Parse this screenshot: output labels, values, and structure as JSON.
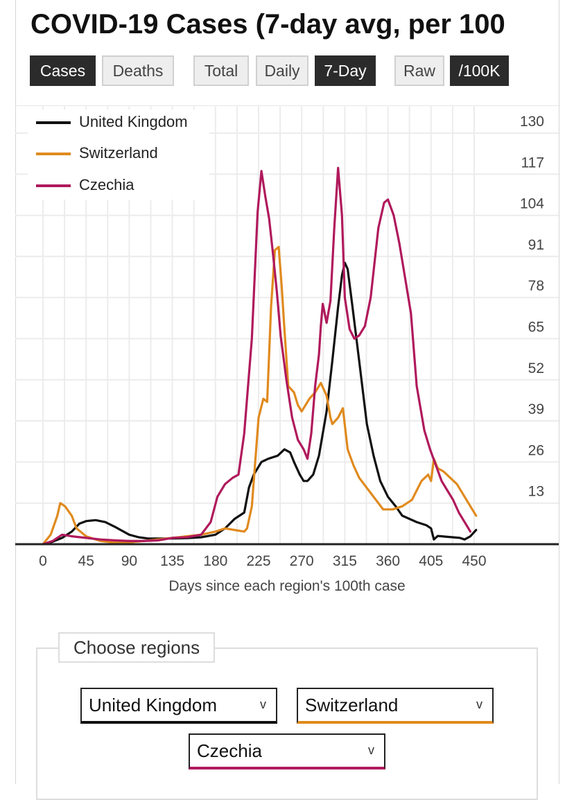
{
  "title": "COVID-19 Cases (7-day avg, per 100",
  "toggles": {
    "metric": [
      {
        "label": "Cases",
        "active": true
      },
      {
        "label": "Deaths",
        "active": false
      }
    ],
    "mode": [
      {
        "label": "Total",
        "active": false
      },
      {
        "label": "Daily",
        "active": false
      },
      {
        "label": "7-Day",
        "active": true
      }
    ],
    "scale": [
      {
        "label": "Raw",
        "active": false
      },
      {
        "label": "/100K",
        "active": true
      }
    ]
  },
  "chart_data": {
    "type": "line",
    "xlabel": "Days since each region's 100th case",
    "ylabel": "",
    "xlim": [
      0,
      450
    ],
    "ylim": [
      0,
      130
    ],
    "x_ticks": [
      0,
      45,
      90,
      135,
      180,
      225,
      270,
      315,
      360,
      405,
      450
    ],
    "y_ticks": [
      13,
      26,
      39,
      52,
      65,
      78,
      91,
      104,
      117,
      130
    ],
    "grid": true,
    "legend_position": "top-left",
    "series": [
      {
        "name": "United Kingdom",
        "color": "#111111",
        "points": [
          [
            0,
            0
          ],
          [
            10,
            0.8
          ],
          [
            20,
            2
          ],
          [
            30,
            4
          ],
          [
            38,
            6.5
          ],
          [
            45,
            7.3
          ],
          [
            55,
            7.6
          ],
          [
            65,
            7
          ],
          [
            75,
            5.5
          ],
          [
            90,
            3
          ],
          [
            100,
            2.2
          ],
          [
            110,
            1.8
          ],
          [
            120,
            1.8
          ],
          [
            135,
            1.8
          ],
          [
            150,
            1.9
          ],
          [
            165,
            2.2
          ],
          [
            180,
            3
          ],
          [
            190,
            5
          ],
          [
            200,
            8
          ],
          [
            210,
            10
          ],
          [
            215,
            18
          ],
          [
            220,
            22
          ],
          [
            228,
            26
          ],
          [
            235,
            27
          ],
          [
            245,
            28
          ],
          [
            252,
            30
          ],
          [
            258,
            29
          ],
          [
            262,
            26
          ],
          [
            268,
            22
          ],
          [
            272,
            20
          ],
          [
            276,
            20
          ],
          [
            282,
            22
          ],
          [
            288,
            28
          ],
          [
            296,
            42
          ],
          [
            302,
            58
          ],
          [
            308,
            75
          ],
          [
            312,
            85
          ],
          [
            315,
            89
          ],
          [
            318,
            87
          ],
          [
            323,
            75
          ],
          [
            330,
            58
          ],
          [
            338,
            38
          ],
          [
            345,
            28
          ],
          [
            352,
            20
          ],
          [
            360,
            15
          ],
          [
            368,
            12
          ],
          [
            375,
            9
          ],
          [
            390,
            7
          ],
          [
            400,
            6
          ],
          [
            405,
            5
          ],
          [
            408,
            1.5
          ],
          [
            412,
            2.6
          ],
          [
            420,
            2.4
          ],
          [
            435,
            2
          ],
          [
            440,
            1.5
          ],
          [
            446,
            2.5
          ],
          [
            452,
            4.5
          ]
        ]
      },
      {
        "name": "Switzerland",
        "color": "#e08a1e",
        "points": [
          [
            0,
            0
          ],
          [
            8,
            3
          ],
          [
            15,
            9
          ],
          [
            18,
            13
          ],
          [
            23,
            12
          ],
          [
            30,
            9
          ],
          [
            35,
            5
          ],
          [
            45,
            2.5
          ],
          [
            60,
            1
          ],
          [
            75,
            0.5
          ],
          [
            90,
            0.6
          ],
          [
            105,
            1
          ],
          [
            120,
            1.5
          ],
          [
            135,
            2
          ],
          [
            150,
            2.5
          ],
          [
            165,
            3
          ],
          [
            180,
            4
          ],
          [
            190,
            5
          ],
          [
            200,
            4.5
          ],
          [
            210,
            4
          ],
          [
            213,
            5
          ],
          [
            218,
            12
          ],
          [
            225,
            40
          ],
          [
            230,
            46
          ],
          [
            234,
            45
          ],
          [
            238,
            75
          ],
          [
            242,
            93
          ],
          [
            246,
            94
          ],
          [
            249,
            82
          ],
          [
            252,
            68
          ],
          [
            256,
            50
          ],
          [
            262,
            48
          ],
          [
            266,
            44
          ],
          [
            270,
            42
          ],
          [
            278,
            46
          ],
          [
            284,
            48
          ],
          [
            290,
            51
          ],
          [
            296,
            47
          ],
          [
            300,
            40
          ],
          [
            302,
            38
          ],
          [
            308,
            40
          ],
          [
            313,
            43
          ],
          [
            318,
            30
          ],
          [
            324,
            25
          ],
          [
            330,
            21
          ],
          [
            345,
            15
          ],
          [
            355,
            11
          ],
          [
            365,
            11
          ],
          [
            375,
            12
          ],
          [
            385,
            14
          ],
          [
            395,
            20
          ],
          [
            402,
            22
          ],
          [
            405,
            20
          ],
          [
            408,
            27
          ],
          [
            412,
            24
          ],
          [
            418,
            23
          ],
          [
            425,
            21
          ],
          [
            432,
            19
          ],
          [
            440,
            15
          ],
          [
            446,
            12
          ],
          [
            452,
            9
          ]
        ]
      },
      {
        "name": "Czechia",
        "color": "#b0195c",
        "points": [
          [
            0,
            0
          ],
          [
            10,
            1
          ],
          [
            20,
            3
          ],
          [
            30,
            2.5
          ],
          [
            45,
            2
          ],
          [
            60,
            1.5
          ],
          [
            75,
            1.2
          ],
          [
            90,
            1
          ],
          [
            105,
            1
          ],
          [
            120,
            1.2
          ],
          [
            135,
            2
          ],
          [
            150,
            2.2
          ],
          [
            165,
            3
          ],
          [
            175,
            7
          ],
          [
            182,
            15
          ],
          [
            190,
            19
          ],
          [
            198,
            21
          ],
          [
            204,
            22
          ],
          [
            210,
            35
          ],
          [
            218,
            65
          ],
          [
            224,
            105
          ],
          [
            228,
            118
          ],
          [
            232,
            110
          ],
          [
            236,
            103
          ],
          [
            240,
            92
          ],
          [
            244,
            80
          ],
          [
            248,
            66
          ],
          [
            254,
            52
          ],
          [
            260,
            40
          ],
          [
            266,
            33
          ],
          [
            272,
            30
          ],
          [
            276,
            27
          ],
          [
            280,
            35
          ],
          [
            284,
            50
          ],
          [
            288,
            60
          ],
          [
            290,
            69
          ],
          [
            292,
            76
          ],
          [
            296,
            70
          ],
          [
            300,
            77
          ],
          [
            304,
            100
          ],
          [
            308,
            119
          ],
          [
            312,
            104
          ],
          [
            315,
            78
          ],
          [
            320,
            68
          ],
          [
            325,
            65
          ],
          [
            330,
            66
          ],
          [
            336,
            69
          ],
          [
            342,
            78
          ],
          [
            350,
            100
          ],
          [
            356,
            108
          ],
          [
            360,
            109
          ],
          [
            366,
            104
          ],
          [
            372,
            95
          ],
          [
            378,
            84
          ],
          [
            384,
            73
          ],
          [
            390,
            50
          ],
          [
            398,
            36
          ],
          [
            404,
            30
          ],
          [
            410,
            25
          ],
          [
            416,
            20
          ],
          [
            422,
            17
          ],
          [
            428,
            14
          ],
          [
            434,
            10
          ],
          [
            440,
            7
          ],
          [
            446,
            4
          ]
        ]
      }
    ]
  },
  "regions": {
    "title": "Choose regions",
    "selects": [
      {
        "value": "United Kingdom",
        "color": "#111111"
      },
      {
        "value": "Switzerland",
        "color": "#e08a1e"
      },
      {
        "value": "Czechia",
        "color": "#b0195c"
      }
    ],
    "chevron": "v"
  }
}
